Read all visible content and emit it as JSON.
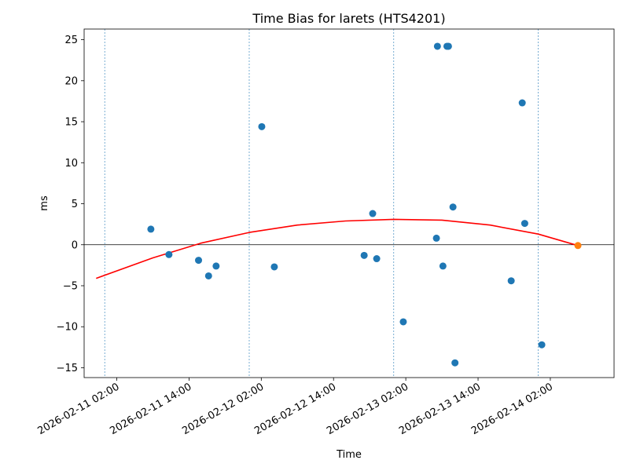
{
  "chart_data": {
    "type": "scatter",
    "title": "Time Bias for larets (HTS4201)",
    "xlabel": "Time",
    "ylabel": "ms",
    "xlim": [
      "2026-02-10T20:35",
      "2026-02-14T12:35"
    ],
    "ylim": [
      -16.2,
      26.3
    ],
    "y_ticks": [
      {
        "value": 25,
        "label": "25"
      },
      {
        "value": 20,
        "label": "20"
      },
      {
        "value": 15,
        "label": "15"
      },
      {
        "value": 10,
        "label": "10"
      },
      {
        "value": 5,
        "label": "5"
      },
      {
        "value": 0,
        "label": "0"
      },
      {
        "value": -5,
        "label": "−5"
      },
      {
        "value": -10,
        "label": "−10"
      },
      {
        "value": -15,
        "label": "−15"
      }
    ],
    "x_ticks": [
      {
        "time": "2026-02-11T02:00",
        "label": "2026-02-11 02:00"
      },
      {
        "time": "2026-02-11T14:00",
        "label": "2026-02-11 14:00"
      },
      {
        "time": "2026-02-12T02:00",
        "label": "2026-02-12 02:00"
      },
      {
        "time": "2026-02-12T14:00",
        "label": "2026-02-12 14:00"
      },
      {
        "time": "2026-02-13T02:00",
        "label": "2026-02-13 02:00"
      },
      {
        "time": "2026-02-13T14:00",
        "label": "2026-02-13 14:00"
      },
      {
        "time": "2026-02-14T02:00",
        "label": "2026-02-14 02:00"
      }
    ],
    "day_lines": [
      "2026-02-11T00:00",
      "2026-02-12T00:00",
      "2026-02-13T00:00",
      "2026-02-14T00:00"
    ],
    "zero_line": 0,
    "series": [
      {
        "color": "#1f77b4",
        "points": [
          {
            "x": "2026-02-11T07:40",
            "y": 1.9
          },
          {
            "x": "2026-02-11T10:40",
            "y": -1.2
          },
          {
            "x": "2026-02-11T15:35",
            "y": -1.9
          },
          {
            "x": "2026-02-11T17:15",
            "y": -3.8
          },
          {
            "x": "2026-02-11T18:30",
            "y": -2.6
          },
          {
            "x": "2026-02-12T02:05",
            "y": 14.4
          },
          {
            "x": "2026-02-12T04:10",
            "y": -2.7
          },
          {
            "x": "2026-02-12T19:05",
            "y": -1.3
          },
          {
            "x": "2026-02-12T20:30",
            "y": 3.8
          },
          {
            "x": "2026-02-12T21:10",
            "y": -1.7
          },
          {
            "x": "2026-02-13T01:35",
            "y": -9.4
          },
          {
            "x": "2026-02-13T07:05",
            "y": 0.8
          },
          {
            "x": "2026-02-13T07:15",
            "y": 24.2
          },
          {
            "x": "2026-02-13T08:10",
            "y": -2.6
          },
          {
            "x": "2026-02-13T08:50",
            "y": 24.2
          },
          {
            "x": "2026-02-13T09:05",
            "y": 24.2
          },
          {
            "x": "2026-02-13T09:50",
            "y": 4.6
          },
          {
            "x": "2026-02-13T10:10",
            "y": -14.4
          },
          {
            "x": "2026-02-13T19:30",
            "y": -4.4
          },
          {
            "x": "2026-02-13T21:20",
            "y": 17.3
          },
          {
            "x": "2026-02-13T21:45",
            "y": 2.6
          },
          {
            "x": "2026-02-14T00:35",
            "y": -12.2
          }
        ]
      },
      {
        "color": "#ff7f0e",
        "points": [
          {
            "x": "2026-02-14T06:35",
            "y": -0.1
          }
        ]
      }
    ],
    "fit": {
      "color": "#ff0000",
      "points": [
        {
          "x": "2026-02-10T22:35",
          "y": -4.1
        },
        {
          "x": "2026-02-11T08:00",
          "y": -1.6
        },
        {
          "x": "2026-02-11T16:00",
          "y": 0.2
        },
        {
          "x": "2026-02-12T00:00",
          "y": 1.5
        },
        {
          "x": "2026-02-12T08:00",
          "y": 2.4
        },
        {
          "x": "2026-02-12T16:00",
          "y": 2.9
        },
        {
          "x": "2026-02-13T00:00",
          "y": 3.1
        },
        {
          "x": "2026-02-13T08:00",
          "y": 3.0
        },
        {
          "x": "2026-02-13T16:00",
          "y": 2.4
        },
        {
          "x": "2026-02-14T00:00",
          "y": 1.3
        },
        {
          "x": "2026-02-14T06:35",
          "y": -0.1
        }
      ]
    }
  }
}
